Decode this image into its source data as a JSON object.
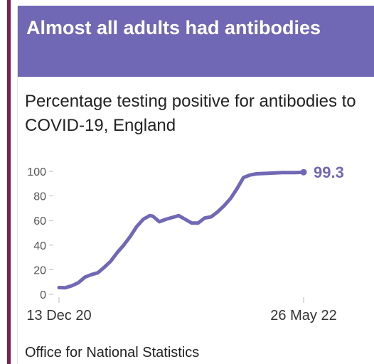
{
  "header": {
    "title": "Almost all adults had antibodies"
  },
  "subtitle": "Percentage testing positive for antibodies to COVID-19, England",
  "source": "Office for National Statistics",
  "colors": {
    "header_bg": "#7168b5",
    "series": "#7168b5",
    "left_rule": "#7a1f4f"
  },
  "chart_data": {
    "type": "line",
    "title": "Percentage testing positive for antibodies to COVID-19, England",
    "xlabel": "",
    "ylabel": "",
    "x_tick_labels": [
      "13 Dec 20",
      "26 May 22"
    ],
    "x_range": [
      "2020-12-13",
      "2022-05-26"
    ],
    "ylim": [
      0,
      100
    ],
    "yticks": [
      0,
      20,
      40,
      60,
      80,
      100
    ],
    "grid": false,
    "end_label": "99.3",
    "series": [
      {
        "points": [
          [
            "2020-12-13",
            5.5
          ],
          [
            "2020-12-27",
            5.4
          ],
          [
            "2021-01-10",
            7
          ],
          [
            "2021-01-24",
            9.5
          ],
          [
            "2021-02-07",
            14
          ],
          [
            "2021-02-21",
            16
          ],
          [
            "2021-03-07",
            17.5
          ],
          [
            "2021-03-21",
            22
          ],
          [
            "2021-04-04",
            27
          ],
          [
            "2021-04-18",
            34
          ],
          [
            "2021-05-02",
            40
          ],
          [
            "2021-05-16",
            47
          ],
          [
            "2021-05-30",
            55
          ],
          [
            "2021-06-13",
            61
          ],
          [
            "2021-06-27",
            64
          ],
          [
            "2021-07-04",
            63.5
          ],
          [
            "2021-07-18",
            59
          ],
          [
            "2021-08-01",
            61
          ],
          [
            "2021-08-15",
            62.5
          ],
          [
            "2021-08-29",
            64
          ],
          [
            "2021-09-12",
            61
          ],
          [
            "2021-09-26",
            58
          ],
          [
            "2021-10-10",
            58
          ],
          [
            "2021-10-24",
            62
          ],
          [
            "2021-11-07",
            63
          ],
          [
            "2021-11-21",
            67
          ],
          [
            "2021-12-05",
            72
          ],
          [
            "2021-12-19",
            78
          ],
          [
            "2022-01-02",
            86
          ],
          [
            "2022-01-16",
            95
          ],
          [
            "2022-01-30",
            97
          ],
          [
            "2022-02-13",
            98
          ],
          [
            "2022-03-13",
            98.5
          ],
          [
            "2022-04-10",
            99
          ],
          [
            "2022-05-08",
            99
          ],
          [
            "2022-05-26",
            99.3
          ]
        ]
      }
    ]
  }
}
